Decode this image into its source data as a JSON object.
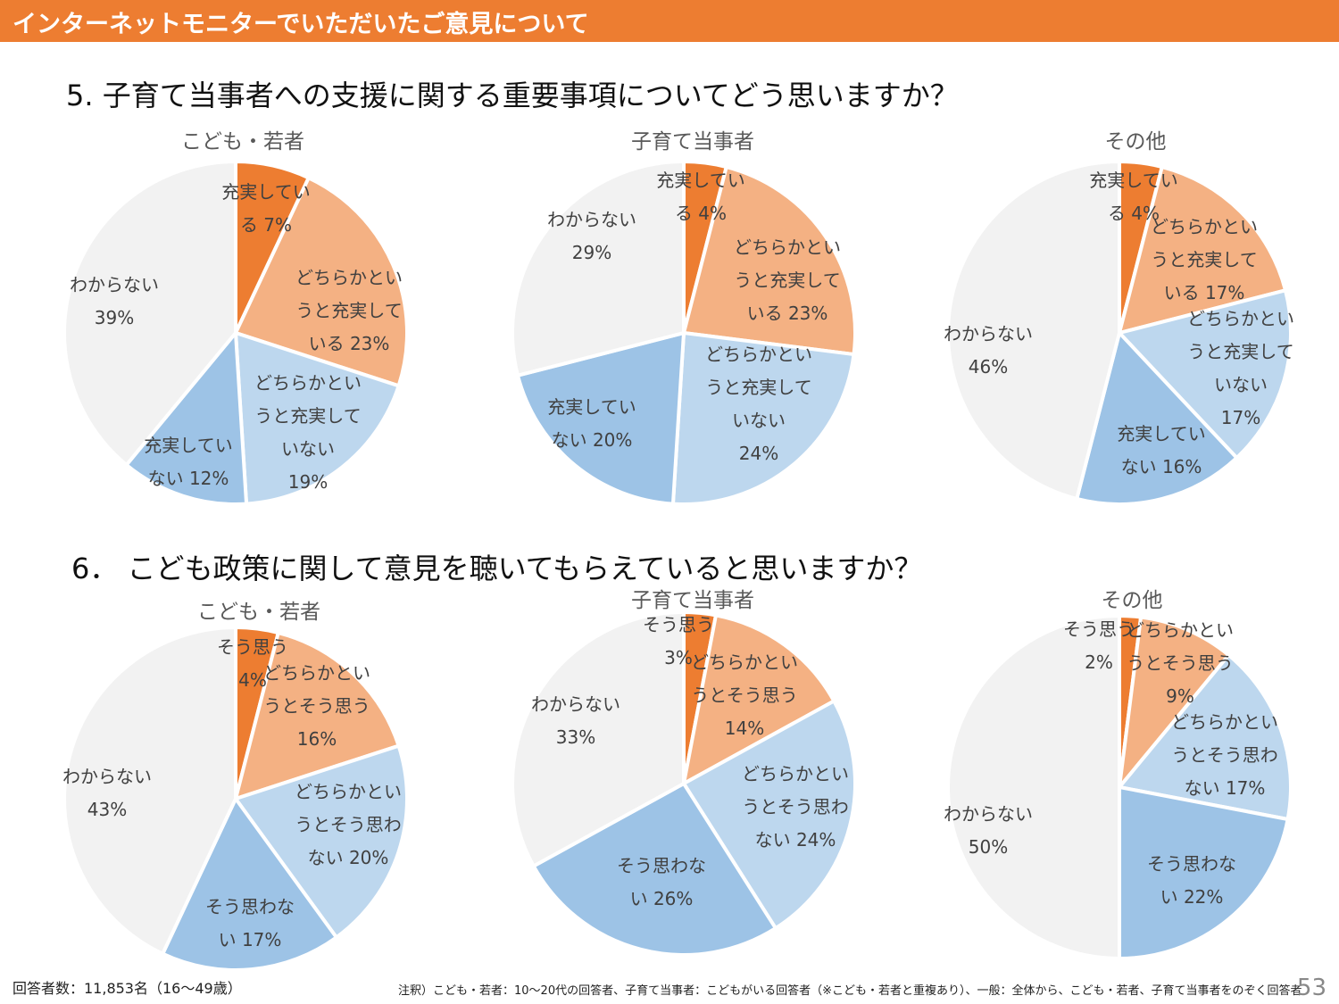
{
  "header": {
    "banner": "インターネットモニターでいただいたご意見について"
  },
  "questions": [
    "5.  子育て当事者への支援に関する重要事項についてどう思いますか？",
    "6． こども政策に関して意見を聴いてもらえていると思いますか？"
  ],
  "colors": [
    "#ED7D31",
    "#F4B183",
    "#BDD7EE",
    "#9DC3E6",
    "#F2F2F2"
  ],
  "chart_data": [
    {
      "type": "pie",
      "title": "こども・若者",
      "categories": [
        "充実している",
        "どちらかというと充実している",
        "どちらかというと充実していない",
        "充実していない",
        "わからない"
      ],
      "values": [
        7,
        23,
        19,
        12,
        39
      ],
      "labels": [
        "充実してい\nる 7%",
        "どちらかとい\nうと充実して\nいる 23%",
        "どちらかとい\nうと充実して\nいない\n19%",
        "充実してい\nない 12%",
        "わからない\n39%"
      ]
    },
    {
      "type": "pie",
      "title": "子育て当事者",
      "categories": [
        "充実している",
        "どちらかというと充実している",
        "どちらかというと充実していない",
        "充実していない",
        "わからない"
      ],
      "values": [
        4,
        23,
        24,
        20,
        29
      ],
      "labels": [
        "充実してい\nる 4%",
        "どちらかとい\nうと充実して\nいる 23%",
        "どちらかとい\nうと充実して\nいない\n24%",
        "充実してい\nない 20%",
        "わからない\n29%"
      ]
    },
    {
      "type": "pie",
      "title": "その他",
      "categories": [
        "充実している",
        "どちらかというと充実している",
        "どちらかというと充実していない",
        "充実していない",
        "わからない"
      ],
      "values": [
        4,
        17,
        17,
        16,
        46
      ],
      "labels": [
        "充実してい\nる 4%",
        "どちらかとい\nうと充実して\nいる 17%",
        "どちらかとい\nうと充実して\nいない\n17%",
        "充実してい\nない 16%",
        "わからない\n46%"
      ]
    },
    {
      "type": "pie",
      "title": "こども・若者",
      "categories": [
        "そう思う",
        "どちらかというとそう思う",
        "どちらかというとそう思わない",
        "そう思わない",
        "わからない"
      ],
      "values": [
        4,
        16,
        20,
        17,
        43
      ],
      "labels": [
        "そう思う\n4%",
        "どちらかとい\nうとそう思う\n16%",
        "どちらかとい\nうとそう思わ\nない 20%",
        "そう思わな\nい 17%",
        "わからない\n43%"
      ]
    },
    {
      "type": "pie",
      "title": "子育て当事者",
      "categories": [
        "そう思う",
        "どちらかというとそう思う",
        "どちらかというとそう思わない",
        "そう思わない",
        "わからない"
      ],
      "values": [
        3,
        14,
        24,
        26,
        33
      ],
      "labels": [
        "そう思う\n3%",
        "どちらかとい\nうとそう思う\n14%",
        "どちらかとい\nうとそう思わ\nない 24%",
        "そう思わな\nい 26%",
        "わからない\n33%"
      ]
    },
    {
      "type": "pie",
      "title": "その他",
      "categories": [
        "そう思う",
        "どちらかというとそう思う",
        "どちらかというとそう思わない",
        "そう思わない",
        "わからない"
      ],
      "values": [
        2,
        9,
        17,
        22,
        50
      ],
      "labels": [
        "そう思う\n2%",
        "どちらかとい\nうとそう思う\n9%",
        "どちらかとい\nうとそう思わ\nない 17%",
        "そう思わな\nい 22%",
        "わからない\n50%"
      ]
    }
  ],
  "footer": {
    "respondents": "回答者数：11,853名（16～49歳）",
    "note": "注釈）こども・若者：10～20代の回答者、子育て当事者：こどもがいる回答者（※こども・若者と重複あり）、一般：全体から、こども・若者、子育て当事者をのぞく回答者",
    "page": "53"
  }
}
